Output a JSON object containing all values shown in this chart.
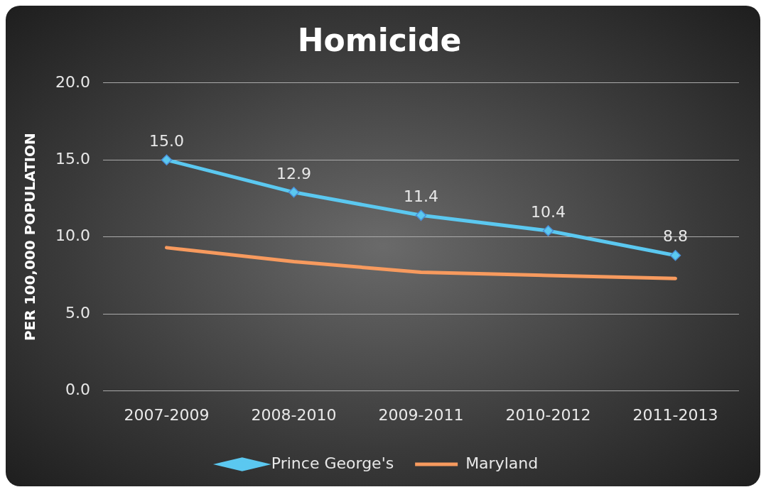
{
  "chart_data": {
    "type": "line",
    "title": "Homicide",
    "ylabel": "PER 100,000 POPULATION",
    "categories": [
      "2007-2009",
      "2008-2010",
      "2009-2011",
      "2010-2012",
      "2011-2013"
    ],
    "series": [
      {
        "name": "Prince George's",
        "color": "#5bc8f0",
        "values": [
          15.0,
          12.9,
          11.4,
          10.4,
          8.8
        ],
        "marker": "diamond",
        "value_labels": [
          "15.0",
          "12.9",
          "11.4",
          "10.4",
          "8.8"
        ]
      },
      {
        "name": "Maryland",
        "color": "#f79a5e",
        "values": [
          9.3,
          8.4,
          7.7,
          7.5,
          7.3
        ],
        "marker": "none"
      }
    ],
    "ylim": [
      0,
      20
    ],
    "yticks": [
      {
        "value": 0,
        "label": "0.0"
      },
      {
        "value": 5,
        "label": "5.0"
      },
      {
        "value": 10,
        "label": "10.0"
      },
      {
        "value": 15,
        "label": "15.0"
      },
      {
        "value": 20,
        "label": "20.0"
      }
    ],
    "grid": "y",
    "legend": "bottom",
    "line_style": "solid"
  }
}
